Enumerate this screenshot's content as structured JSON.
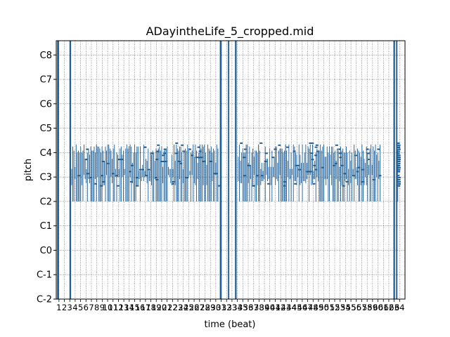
{
  "chart_data": {
    "type": "piano-roll",
    "title": "ADayintheLife_5_cropped.mid",
    "xlabel": "time (beat)",
    "ylabel": "pitch",
    "y_tick_labels": [
      "C-2",
      "C-1",
      "C0",
      "C1",
      "C2",
      "C3",
      "C4",
      "C5",
      "C6",
      "C7",
      "C8"
    ],
    "y_tick_values": [
      0,
      12,
      24,
      36,
      48,
      60,
      72,
      84,
      96,
      108,
      120
    ],
    "ylim": [
      0,
      127
    ],
    "x_tick_labels": [
      "1",
      "2",
      "3",
      "4",
      "5",
      "6",
      "7",
      "8",
      "9",
      "10",
      "11",
      "12",
      "13",
      "14",
      "15",
      "16",
      "17",
      "18",
      "19",
      "20",
      "21",
      "22",
      "23",
      "24",
      "25",
      "26",
      "27",
      "28",
      "29",
      "30",
      "31",
      "32",
      "33",
      "34",
      "35",
      "36",
      "37",
      "38",
      "39",
      "40",
      "41",
      "42",
      "43",
      "44",
      "45",
      "46",
      "47",
      "48",
      "49",
      "50",
      "51",
      "52",
      "53",
      "54",
      "55",
      "56",
      "57",
      "58",
      "59",
      "60",
      "61",
      "62",
      "63",
      "64"
    ],
    "xlim": [
      0,
      64.5
    ],
    "grid": true,
    "grid_style": "dotted",
    "note_color": "#1f5f96",
    "note_columns": [
      {
        "start": 0.15,
        "end": 0.5,
        "low": 0,
        "high": 127
      },
      {
        "start": 2.45,
        "end": 2.75,
        "low": 0,
        "high": 127
      },
      {
        "start": 30.25,
        "end": 30.6,
        "low": 0,
        "high": 127
      },
      {
        "start": 31.75,
        "end": 32.0,
        "low": 0,
        "high": 127
      },
      {
        "start": 33.05,
        "end": 33.35,
        "low": 0,
        "high": 127
      },
      {
        "start": 62.35,
        "end": 62.65,
        "low": 0,
        "high": 127
      },
      {
        "start": 62.85,
        "end": 63.1,
        "low": 0,
        "high": 127
      }
    ],
    "dense_regions": [
      {
        "start": 2.8,
        "end": 30.0,
        "low": 48,
        "high": 76
      },
      {
        "start": 33.6,
        "end": 60.0,
        "low": 48,
        "high": 76
      },
      {
        "start": 62.9,
        "end": 63.2,
        "low": 48,
        "high": 76
      }
    ]
  }
}
